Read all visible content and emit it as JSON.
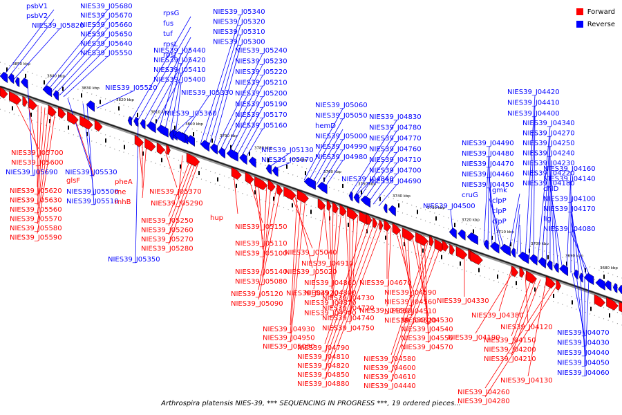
{
  "legend": {
    "forward_label": "Forward",
    "reverse_label": "Reverse",
    "forward_color": "#ff0000",
    "reverse_color": "#0000ff"
  },
  "caption": "Arthrospira platensis NIES-39, *** SEQUENCING IN PROGRESS ***, 19 ordered pieces...",
  "scale_labels": [
    "3850 kbp",
    "3840 kbp",
    "3830 kbp",
    "3820 kbp",
    "3810 kbp",
    "3800 kbp",
    "3790 kbp",
    "3780 kbp",
    "3770 kbp",
    "3760 kbp",
    "3750 kbp",
    "3740 kbp",
    "3730 kbp",
    "3720 kbp",
    "3710 kbp",
    "3700 kbp",
    "3690 kbp",
    "3680 kbp"
  ],
  "reverse_genes": [
    "psbV1",
    "psbV2",
    "NIES39_J05820",
    "NIES39_J05680",
    "NIES39_J05670",
    "NIES39_J05660",
    "NIES39_J05650",
    "NIES39_J05640",
    "NIES39_J05550",
    "NIES39_J05520",
    "rpsG",
    "fus",
    "tuf",
    "rpsL",
    "rpsJ",
    "NIES39_J05440",
    "NIES39_J05420",
    "NIES39_J05410",
    "NIES39_J05400",
    "NIES39_J05360",
    "NIES39_J05340",
    "NIES39_J05320",
    "NIES39_J05310",
    "NIES39_J05300",
    "NIES39_J05240",
    "NIES39_J05230",
    "NIES39_J05220",
    "NIES39_J05210",
    "NIES39_J05200",
    "NIES39_J05190",
    "NIES39_J05170",
    "NIES39_J05160",
    "NIES39_J05330",
    "NIES39_J05130",
    "NIES39_J05070",
    "NIES39_J05060",
    "NIES39_J05050",
    "hemD",
    "NIES39_J05000",
    "NIES39_J04990",
    "NIES39_J04980",
    "NIES39_J04830",
    "NIES39_J04780",
    "NIES39_J04770",
    "NIES39_J04760",
    "NIES39_J04710",
    "NIES39_J04700",
    "NIES39_J04690",
    "NIES39_J04840",
    "NIES39_J04500",
    "NIES39_J04490",
    "NIES39_J04480",
    "NIES39_J04470",
    "NIES39_J04460",
    "NIES39_J04450",
    "cruG",
    "gmk",
    "clpP",
    "clpP",
    "clpP",
    "NIES39_J04420",
    "NIES39_J04410",
    "NIES39_J04400",
    "NIES39_J04340",
    "NIES39_J04270",
    "NIES39_J04250",
    "NIES39_J04240",
    "NIES39_J04230",
    "NIES39_J04220",
    "NIES39_J04180",
    "NIES39_J04160",
    "NIES39_J04140",
    "chlD",
    "NIES39_J04100",
    "NIES39_J04170",
    "lig",
    "NIES39_J04080",
    "NIES39_J05690",
    "NIES39_J05530",
    "NIES39_J05500",
    "NIES39_J05510",
    "NIES39_J05350",
    "NIES39_J04070",
    "NIES39_J04030",
    "NIES39_J04040",
    "NIES39_J04050",
    "NIES39_J04060"
  ],
  "forward_genes": [
    "NIES39_J05700",
    "NIES39_J05600",
    "NIES39_J05620",
    "NIES39_J05630",
    "NIES39_J05560",
    "NIES39_J05570",
    "NIES39_J05580",
    "NIES39_J05590",
    "glsF",
    "pheA",
    "rne",
    "rnhB",
    "NIES39_J05370",
    "NIES39_J05290",
    "NIES39_J05250",
    "NIES39_J05260",
    "NIES39_J05270",
    "NIES39_J05280",
    "hup",
    "NIES39_J05150",
    "NIES39_J05110",
    "NIES39_J05100",
    "NIES39_J05140",
    "NIES39_J05080",
    "NIES39_J05120",
    "NIES39_J05090",
    "NIES39_J05040",
    "NIES39_J05020",
    "NIES39_J04910",
    "NIES39_J04920",
    "NIES39_J04860",
    "NIES39_J04800",
    "NIES39_J04870",
    "NIES39_J04900",
    "NIES39_J04730",
    "NIES39_J04720",
    "NIES39_J04740",
    "NIES39_J04750",
    "NIES39_J04930",
    "NIES39_J04950",
    "NIES39_J05030",
    "NIES39_J04790",
    "NIES39_J04810",
    "NIES39_J04820",
    "NIES39_J04850",
    "NIES39_J04880",
    "NIES39_J04670",
    "NIES39_J04680",
    "NIES39_J04590",
    "NIES39_J04560",
    "NIES39_J04510",
    "NIES39_J04520",
    "NIES39_J04530",
    "NIES39_J04540",
    "NIES39_J04550",
    "NIES39_J04570",
    "NIES39_J04580",
    "NIES39_J04600",
    "NIES39_J04610",
    "NIES39_J04440",
    "NIES39_J04330",
    "NIES39_J04380",
    "NIES39_J04190",
    "NIES39_J04120",
    "NIES39_J04150",
    "NIES39_J04200",
    "NIES39_J04210",
    "NIES39_J04130",
    "NIES39_J04260",
    "NIES39_J04280"
  ]
}
